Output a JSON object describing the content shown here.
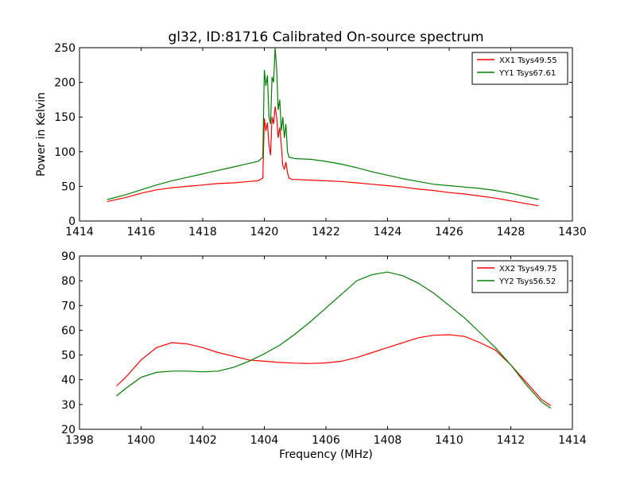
{
  "figure_title": "gl32, ID:81716 Calibrated On-source spectrum",
  "chart_data": [
    {
      "type": "line",
      "title": "",
      "xlabel": "",
      "ylabel": "Power in Kelvin",
      "xlim": [
        1414,
        1430
      ],
      "ylim": [
        0,
        250
      ],
      "xticks": [
        "1414",
        "1416",
        "1418",
        "1420",
        "1422",
        "1424",
        "1426",
        "1428",
        "1430"
      ],
      "yticks": [
        "0",
        "50",
        "100",
        "150",
        "200",
        "250"
      ],
      "legend_position": "top-right",
      "grid": false,
      "series": [
        {
          "name": "XX1 Tsys49.55",
          "color": "#ff0000",
          "x": [
            1414.9,
            1415.5,
            1416.0,
            1416.5,
            1417.0,
            1417.5,
            1418.0,
            1418.5,
            1419.0,
            1419.5,
            1419.8,
            1419.95,
            1420.0,
            1420.05,
            1420.1,
            1420.15,
            1420.2,
            1420.25,
            1420.3,
            1420.35,
            1420.4,
            1420.45,
            1420.5,
            1420.55,
            1420.6,
            1420.65,
            1420.7,
            1420.75,
            1420.8,
            1420.9,
            1421.0,
            1421.5,
            1422.0,
            1422.5,
            1423.0,
            1423.5,
            1424.0,
            1424.5,
            1425.0,
            1425.5,
            1426.0,
            1426.5,
            1427.0,
            1427.5,
            1428.0,
            1428.5,
            1428.9
          ],
          "y": [
            28,
            34,
            40,
            45,
            48,
            50,
            52,
            54,
            55,
            57,
            58,
            62,
            148,
            130,
            142,
            110,
            95,
            150,
            140,
            165,
            150,
            120,
            135,
            110,
            80,
            75,
            85,
            70,
            62,
            60,
            60,
            59,
            58,
            57,
            55,
            53,
            51,
            49,
            46,
            44,
            41,
            39,
            36,
            33,
            29,
            25,
            22
          ]
        },
        {
          "name": "YY1 Tsys67.61",
          "color": "#008000",
          "x": [
            1414.9,
            1415.5,
            1416.0,
            1416.5,
            1417.0,
            1417.5,
            1418.0,
            1418.5,
            1419.0,
            1419.5,
            1419.8,
            1419.95,
            1420.0,
            1420.05,
            1420.1,
            1420.15,
            1420.2,
            1420.25,
            1420.3,
            1420.35,
            1420.4,
            1420.45,
            1420.5,
            1420.55,
            1420.6,
            1420.65,
            1420.7,
            1420.75,
            1420.8,
            1420.9,
            1421.0,
            1421.5,
            1422.0,
            1422.5,
            1423.0,
            1423.5,
            1424.0,
            1424.5,
            1425.0,
            1425.5,
            1426.0,
            1426.5,
            1427.0,
            1427.5,
            1428.0,
            1428.5,
            1428.9
          ],
          "y": [
            31,
            38,
            45,
            52,
            58,
            63,
            68,
            73,
            78,
            83,
            86,
            92,
            218,
            195,
            210,
            150,
            140,
            208,
            200,
            250,
            220,
            160,
            175,
            130,
            150,
            120,
            140,
            100,
            92,
            91,
            90,
            89,
            86,
            82,
            77,
            71,
            66,
            61,
            57,
            53,
            51,
            49,
            47,
            44,
            40,
            35,
            31
          ]
        }
      ]
    },
    {
      "type": "line",
      "title": "",
      "xlabel": "Frequency (MHz)",
      "ylabel": "",
      "xlim": [
        1398,
        1414
      ],
      "ylim": [
        20,
        90
      ],
      "xticks": [
        "1398",
        "1400",
        "1402",
        "1404",
        "1406",
        "1408",
        "1410",
        "1412",
        "1414"
      ],
      "yticks": [
        "20",
        "30",
        "40",
        "50",
        "60",
        "70",
        "80",
        "90"
      ],
      "legend_position": "top-right",
      "grid": false,
      "series": [
        {
          "name": "XX2 Tsys49.75",
          "color": "#ff0000",
          "x": [
            1399.2,
            1399.5,
            1400.0,
            1400.5,
            1401.0,
            1401.5,
            1402.0,
            1402.5,
            1403.0,
            1403.5,
            1404.0,
            1404.5,
            1405.0,
            1405.5,
            1406.0,
            1406.5,
            1407.0,
            1407.5,
            1408.0,
            1408.5,
            1409.0,
            1409.5,
            1410.0,
            1410.5,
            1411.0,
            1411.5,
            1412.0,
            1412.5,
            1413.0,
            1413.3
          ],
          "y": [
            37.5,
            41,
            48,
            53,
            55,
            54.5,
            53,
            51,
            49.5,
            48,
            47.5,
            47,
            46.7,
            46.6,
            46.8,
            47.5,
            49,
            51,
            53,
            55,
            57,
            58,
            58.2,
            57.5,
            55,
            52,
            46,
            39,
            32,
            29.5
          ]
        },
        {
          "name": "YY2 Tsys56.52",
          "color": "#008000",
          "x": [
            1399.2,
            1399.5,
            1400.0,
            1400.5,
            1401.0,
            1401.5,
            1402.0,
            1402.5,
            1403.0,
            1403.5,
            1404.0,
            1404.5,
            1405.0,
            1405.5,
            1406.0,
            1406.5,
            1407.0,
            1407.5,
            1408.0,
            1408.5,
            1409.0,
            1409.5,
            1410.0,
            1410.5,
            1411.0,
            1411.5,
            1412.0,
            1412.5,
            1413.0,
            1413.3
          ],
          "y": [
            33.5,
            36.5,
            41,
            43,
            43.5,
            43.5,
            43.2,
            43.5,
            45,
            47.5,
            50.5,
            54,
            58.5,
            63.5,
            69,
            74.5,
            80,
            82.5,
            83.5,
            82,
            79,
            75,
            70,
            65,
            59,
            53,
            46,
            38,
            31,
            28.5
          ]
        }
      ]
    }
  ]
}
